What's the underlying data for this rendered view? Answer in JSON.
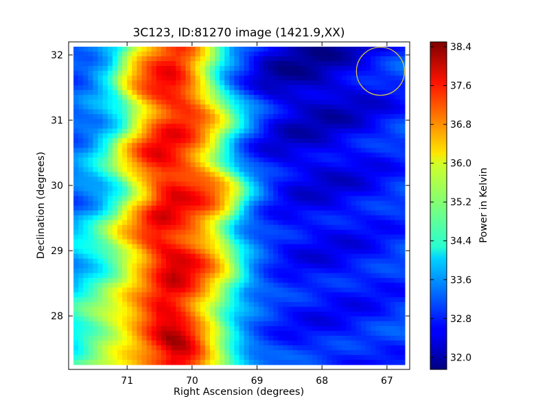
{
  "chart_data": {
    "type": "heatmap",
    "title": "3C123, ID:81270 image (1421.9,XX)",
    "xlabel": "Right Ascension (degrees)",
    "ylabel": "Declination (degrees)",
    "xlim": [
      71.9,
      66.65
    ],
    "ylim": [
      27.18,
      32.2
    ],
    "xticks": [
      71,
      70,
      69,
      68,
      67
    ],
    "yticks": [
      28,
      29,
      30,
      31,
      32
    ],
    "grid": false,
    "colorbar": {
      "label": "Power in Kelvin",
      "range": [
        31.75,
        38.5
      ],
      "ticks": [
        "32.0",
        "32.8",
        "33.6",
        "34.4",
        "35.2",
        "36.0",
        "36.8",
        "37.6",
        "38.4"
      ],
      "colormap": "jet"
    },
    "beam_circle": {
      "ra": 67.1,
      "dec": 31.75,
      "color": "#d4c84a"
    },
    "power_profile_vs_ra": {
      "ra": [
        71.9,
        71.5,
        71.2,
        71.0,
        70.8,
        70.6,
        70.4,
        70.2,
        70.0,
        69.8,
        69.6,
        69.4,
        69.2,
        69.0,
        68.8,
        68.5,
        68.0,
        67.5,
        67.0,
        66.65
      ],
      "power_north": [
        33.0,
        33.3,
        34.0,
        35.3,
        36.4,
        37.0,
        37.4,
        37.5,
        36.9,
        35.8,
        34.6,
        33.4,
        33.0,
        32.6,
        32.2,
        32.0,
        32.0,
        32.3,
        32.7,
        33.0
      ],
      "power_middle": [
        33.3,
        33.9,
        34.9,
        35.9,
        36.6,
        37.4,
        37.7,
        37.5,
        37.3,
        37.0,
        36.4,
        35.4,
        34.0,
        33.3,
        32.9,
        32.6,
        32.5,
        32.6,
        32.8,
        33.0
      ],
      "power_south": [
        34.5,
        35.4,
        35.9,
        36.2,
        36.7,
        37.3,
        38.0,
        38.0,
        37.3,
        36.2,
        35.2,
        34.2,
        33.6,
        33.3,
        33.1,
        32.9,
        32.8,
        32.8,
        32.9,
        33.0
      ]
    }
  }
}
